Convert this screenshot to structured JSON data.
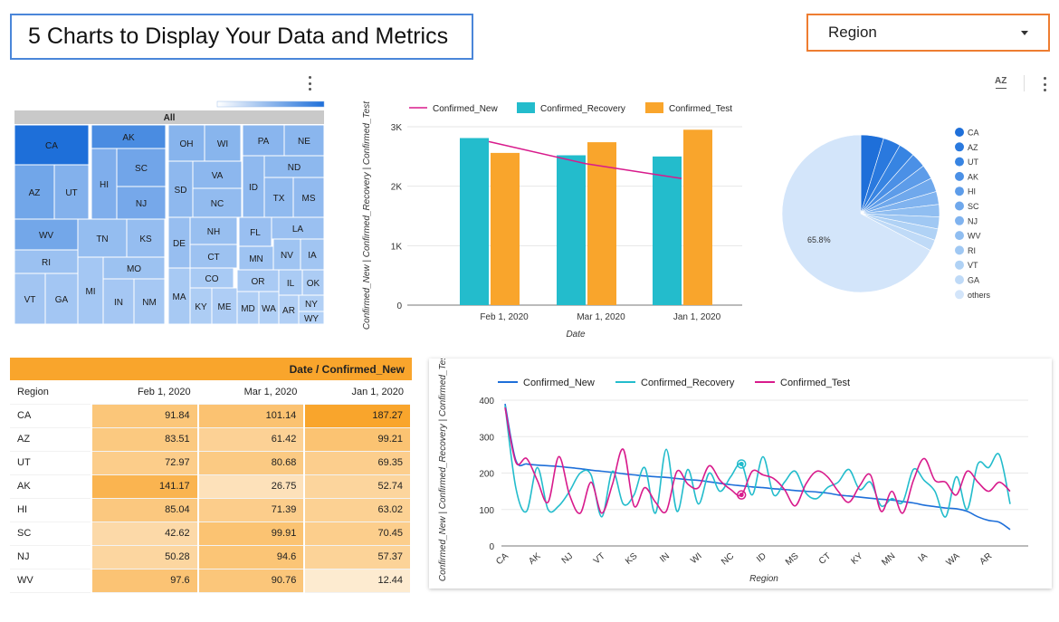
{
  "header": {
    "title": "5 Charts to Display Your Data and Metrics",
    "region_control_label": "Region"
  },
  "colors": {
    "accent_orange": "#ee7d31",
    "title_border": "#4a86d9",
    "teal": "#23bccc",
    "orange": "#f9a52c",
    "magenta": "#d81b8c",
    "blue": "#1e6fd9"
  },
  "chart_data": [
    {
      "type": "treemap",
      "root_label": "All",
      "color_scale": [
        "#cfe3fb",
        "#1e6fd9"
      ],
      "items": [
        {
          "label": "CA",
          "value": 187.27
        },
        {
          "label": "AK",
          "value": 141.17
        },
        {
          "label": "AZ",
          "value": 99.21
        },
        {
          "label": "UT",
          "value": 80.68
        },
        {
          "label": "HI",
          "value": 85.04
        },
        {
          "label": "SC",
          "value": 99.91
        },
        {
          "label": "NJ",
          "value": 94.6
        },
        {
          "label": "OH"
        },
        {
          "label": "WI"
        },
        {
          "label": "PA"
        },
        {
          "label": "NE"
        },
        {
          "label": "VA"
        },
        {
          "label": "ND"
        },
        {
          "label": "SD"
        },
        {
          "label": "ID"
        },
        {
          "label": "TX"
        },
        {
          "label": "MS"
        },
        {
          "label": "NC"
        },
        {
          "label": "WV",
          "value": 97.6
        },
        {
          "label": "TN"
        },
        {
          "label": "KS"
        },
        {
          "label": "DE"
        },
        {
          "label": "NH"
        },
        {
          "label": "FL"
        },
        {
          "label": "LA"
        },
        {
          "label": "RI"
        },
        {
          "label": "MO"
        },
        {
          "label": "CT"
        },
        {
          "label": "MN"
        },
        {
          "label": "NV"
        },
        {
          "label": "IA"
        },
        {
          "label": "VT"
        },
        {
          "label": "GA"
        },
        {
          "label": "MI"
        },
        {
          "label": "IN"
        },
        {
          "label": "NM"
        },
        {
          "label": "MA"
        },
        {
          "label": "CO"
        },
        {
          "label": "OR"
        },
        {
          "label": "IL"
        },
        {
          "label": "OK"
        },
        {
          "label": "KY"
        },
        {
          "label": "ME"
        },
        {
          "label": "MD"
        },
        {
          "label": "WA"
        },
        {
          "label": "AR"
        },
        {
          "label": "NY"
        },
        {
          "label": "WY"
        }
      ]
    },
    {
      "type": "bar",
      "categories": [
        "Feb 1, 2020",
        "Mar 1, 2020",
        "Jan 1, 2020"
      ],
      "series": [
        {
          "name": "Confirmed_New",
          "type": "line",
          "values": [
            2750,
            2380,
            2130
          ]
        },
        {
          "name": "Confirmed_Recovery",
          "values": [
            2810,
            2520,
            2500
          ]
        },
        {
          "name": "Confirmed_Test",
          "values": [
            2560,
            2740,
            2950
          ]
        }
      ],
      "xlabel": "Date",
      "ylabel": "Confirmed_New | Confirmed_Recovery | Confirmed_Test",
      "yticks": [
        "0",
        "1K",
        "2K",
        "3K"
      ],
      "ylim": [
        0,
        3000
      ],
      "legend": "top"
    },
    {
      "type": "pie",
      "labels": [
        "CA",
        "AZ",
        "UT",
        "AK",
        "HI",
        "SC",
        "NJ",
        "WV",
        "RI",
        "VT",
        "GA",
        "others"
      ],
      "values": [
        4.6,
        3.5,
        3.2,
        3.0,
        2.9,
        2.8,
        2.6,
        2.5,
        2.4,
        2.3,
        2.2,
        65.8
      ],
      "slice_labels": [
        "",
        "",
        "",
        "",
        "",
        "",
        "",
        "",
        "",
        "",
        "",
        "65.8%"
      ],
      "colors": [
        "#1e6fd9",
        "#2a79de",
        "#3784e2",
        "#4b90e6",
        "#5d9ce9",
        "#6fa8ec",
        "#80b3ef",
        "#90bef1",
        "#a0c8f3",
        "#b0d2f5",
        "#bfdaf7",
        "#d3e5fa"
      ],
      "legend": "right"
    },
    {
      "type": "table",
      "title": "Date / Confirmed_New",
      "columns": [
        "Region",
        "Feb 1, 2020",
        "Mar 1, 2020",
        "Jan 1, 2020"
      ],
      "rows": [
        [
          "CA",
          "91.84",
          "101.14",
          "187.27"
        ],
        [
          "AZ",
          "83.51",
          "61.42",
          "99.21"
        ],
        [
          "UT",
          "72.97",
          "80.68",
          "69.35"
        ],
        [
          "AK",
          "141.17",
          "26.75",
          "52.74"
        ],
        [
          "HI",
          "85.04",
          "71.39",
          "63.02"
        ],
        [
          "SC",
          "42.62",
          "99.91",
          "70.45"
        ],
        [
          "NJ",
          "50.28",
          "94.6",
          "57.37"
        ],
        [
          "WV",
          "97.6",
          "90.76",
          "12.44"
        ]
      ]
    },
    {
      "type": "line",
      "x_tick_labels": [
        "CA",
        "AK",
        "NJ",
        "VT",
        "KS",
        "IN",
        "WI",
        "NC",
        "ID",
        "MS",
        "CT",
        "KY",
        "MN",
        "IA",
        "WA",
        "AR"
      ],
      "x_count": 48,
      "series": [
        {
          "name": "Confirmed_New",
          "values": [
            390,
            235,
            225,
            222,
            220,
            218,
            215,
            212,
            208,
            205,
            202,
            198,
            195,
            192,
            190,
            188,
            185,
            182,
            180,
            176,
            172,
            168,
            165,
            162,
            160,
            157,
            155,
            152,
            150,
            148,
            145,
            140,
            137,
            134,
            131,
            128,
            126,
            122,
            118,
            112,
            108,
            104,
            102,
            95,
            80,
            70,
            65,
            45
          ]
        },
        {
          "name": "Confirmed_Recovery",
          "values": [
            385,
            160,
            95,
            215,
            100,
            110,
            150,
            200,
            195,
            80,
            205,
            115,
            140,
            215,
            90,
            265,
            95,
            210,
            115,
            200,
            150,
            190,
            225,
            140,
            245,
            140,
            175,
            205,
            145,
            130,
            160,
            175,
            210,
            155,
            175,
            110,
            130,
            120,
            210,
            180,
            150,
            80,
            190,
            100,
            225,
            215,
            250,
            115
          ]
        },
        {
          "name": "Confirmed_Test",
          "values": [
            380,
            230,
            240,
            180,
            120,
            245,
            140,
            90,
            175,
            90,
            170,
            265,
            110,
            160,
            120,
            95,
            205,
            170,
            160,
            220,
            180,
            155,
            140,
            205,
            195,
            185,
            155,
            110,
            170,
            205,
            190,
            150,
            120,
            165,
            195,
            95,
            150,
            90,
            180,
            240,
            180,
            175,
            140,
            205,
            175,
            150,
            175,
            150
          ]
        }
      ],
      "xlabel": "Region",
      "ylabel": "Confirmed_New | Confirmed_Recovery | Confirmed_Test",
      "yticks": [
        "0",
        "100",
        "200",
        "300",
        "400"
      ],
      "ylim": [
        0,
        400
      ],
      "legend": "top"
    }
  ]
}
